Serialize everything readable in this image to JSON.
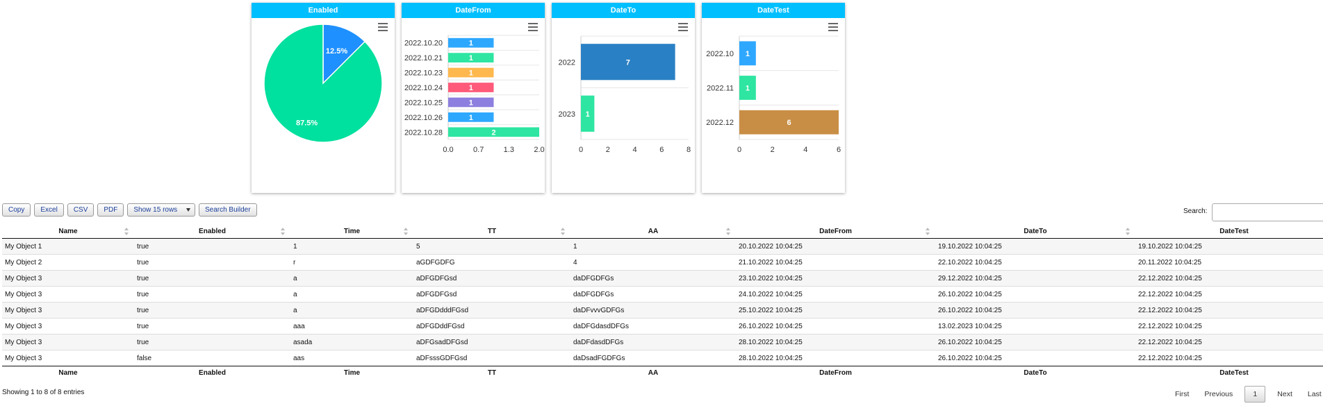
{
  "charts": {
    "enabled": {
      "title": "Enabled",
      "menu_icon": "hamburger-menu-icon",
      "chart_data": {
        "type": "pie",
        "title": "Enabled",
        "slices": [
          {
            "label": "12.5%",
            "value": 12.5,
            "color": "#1e90ff"
          },
          {
            "label": "87.5%",
            "value": 87.5,
            "color": "#00e09e"
          }
        ]
      }
    },
    "datefrom": {
      "title": "DateFrom",
      "menu_icon": "hamburger-menu-icon",
      "chart_data": {
        "type": "bar",
        "orientation": "horizontal",
        "title": "DateFrom",
        "categories": [
          "2022.10.20",
          "2022.10.21",
          "2022.10.23",
          "2022.10.24",
          "2022.10.25",
          "2022.10.26",
          "2022.10.28"
        ],
        "values": [
          1,
          1,
          1,
          1,
          1,
          1,
          2
        ],
        "colors": [
          "#2ea8ff",
          "#2ee5a1",
          "#ffb84d",
          "#ff5a7a",
          "#8c7fdf",
          "#2ea8ff",
          "#2ee5a1"
        ],
        "xlim": [
          0,
          2
        ],
        "xticks": [
          "0.0",
          "0.7",
          "1.3",
          "2.0"
        ]
      }
    },
    "dateto": {
      "title": "DateTo",
      "menu_icon": "hamburger-menu-icon",
      "chart_data": {
        "type": "bar",
        "orientation": "horizontal",
        "title": "DateTo",
        "categories": [
          "2022",
          "2023"
        ],
        "values": [
          7,
          1
        ],
        "colors": [
          "#2a80c4",
          "#2ee5a1"
        ],
        "xlim": [
          0,
          8
        ],
        "xticks": [
          "0",
          "2",
          "4",
          "6",
          "8"
        ]
      }
    },
    "datetest": {
      "title": "DateTest",
      "menu_icon": "hamburger-menu-icon",
      "chart_data": {
        "type": "bar",
        "orientation": "horizontal",
        "title": "DateTest",
        "categories": [
          "2022.10",
          "2022.11",
          "2022.12"
        ],
        "values": [
          1,
          1,
          6
        ],
        "colors": [
          "#2ea8ff",
          "#2ee5a1",
          "#c98e45"
        ],
        "xlim": [
          0,
          6
        ],
        "xticks": [
          "0",
          "2",
          "4",
          "6"
        ]
      }
    }
  },
  "toolbar": {
    "copy": "Copy",
    "excel": "Excel",
    "csv": "CSV",
    "pdf": "PDF",
    "show_rows": "Show 15 rows",
    "show_rows_icon": "triangle-down-icon",
    "search_builder": "Search Builder"
  },
  "search": {
    "label": "Search:",
    "value": ""
  },
  "table": {
    "columns": [
      "Name",
      "Enabled",
      "Time",
      "TT",
      "AA",
      "DateFrom",
      "DateTo",
      "DateTest"
    ],
    "rows": [
      [
        "My Object 1",
        "true",
        "1",
        "5",
        "1",
        "20.10.2022 10:04:25",
        "19.10.2022 10:04:25",
        "19.10.2022 10:04:25"
      ],
      [
        "My Object 2",
        "true",
        "r",
        "aGDFGDFG",
        "4",
        "21.10.2022 10:04:25",
        "22.10.2022 10:04:25",
        "20.11.2022 10:04:25"
      ],
      [
        "My Object 3",
        "true",
        "a",
        "aDFGDFGsd",
        "daDFGDFGs",
        "23.10.2022 10:04:25",
        "29.12.2022 10:04:25",
        "22.12.2022 10:04:25"
      ],
      [
        "My Object 3",
        "true",
        "a",
        "aDFGDFGsd",
        "daDFGDFGs",
        "24.10.2022 10:04:25",
        "26.10.2022 10:04:25",
        "22.12.2022 10:04:25"
      ],
      [
        "My Object 3",
        "true",
        "a",
        "aDFGDdddFGsd",
        "daDFvvvGDFGs",
        "25.10.2022 10:04:25",
        "26.10.2022 10:04:25",
        "22.12.2022 10:04:25"
      ],
      [
        "My Object 3",
        "true",
        "aaa",
        "aDFGDddFGsd",
        "daDFGdasdDFGs",
        "26.10.2022 10:04:25",
        "13.02.2023 10:04:25",
        "22.12.2022 10:04:25"
      ],
      [
        "My Object 3",
        "true",
        "asada",
        "aDFGsadDFGsd",
        "daDFdasdDFGs",
        "28.10.2022 10:04:25",
        "26.10.2022 10:04:25",
        "22.12.2022 10:04:25"
      ],
      [
        "My Object 3",
        "false",
        "aas",
        "aDFsssGDFGsd",
        "daDsadFGDFGs",
        "28.10.2022 10:04:25",
        "26.10.2022 10:04:25",
        "22.12.2022 10:04:25"
      ]
    ],
    "sort_icon": "sort-arrows-icon"
  },
  "info": "Showing 1 to 8 of 8 entries",
  "pagination": {
    "first": "First",
    "previous": "Previous",
    "current": "1",
    "next": "Next",
    "last": "Last"
  }
}
